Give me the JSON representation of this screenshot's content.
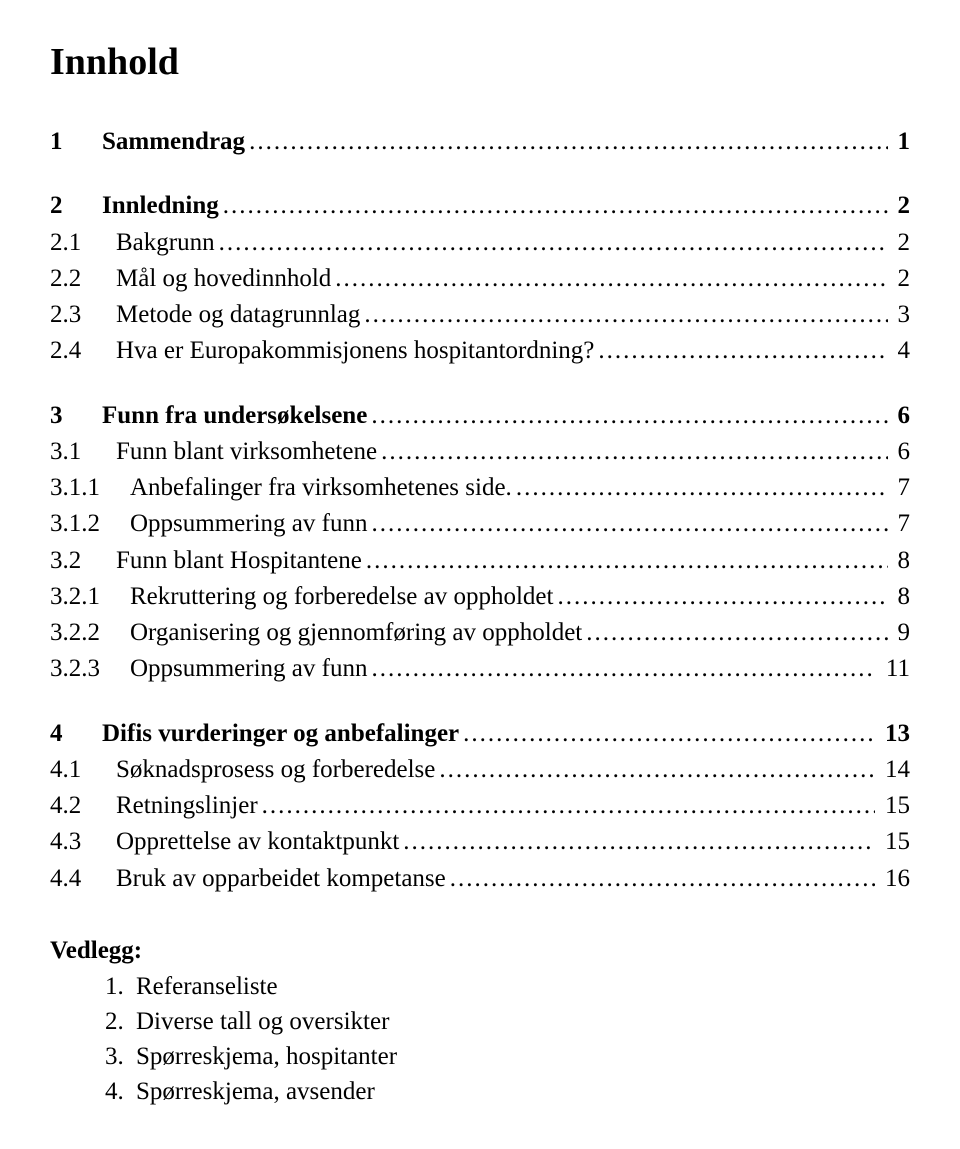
{
  "title": "Innhold",
  "groups": [
    [
      {
        "num": "1",
        "label": "Sammendrag",
        "page": "1",
        "bold": true,
        "level": 0
      }
    ],
    [
      {
        "num": "2",
        "label": "Innledning",
        "page": "2",
        "bold": true,
        "level": 0
      },
      {
        "num": "2.1",
        "label": "Bakgrunn",
        "page": "2",
        "bold": false,
        "level": 1
      },
      {
        "num": "2.2",
        "label": "Mål og hovedinnhold",
        "page": "2",
        "bold": false,
        "level": 1
      },
      {
        "num": "2.3",
        "label": "Metode og datagrunnlag",
        "page": "3",
        "bold": false,
        "level": 1
      },
      {
        "num": "2.4",
        "label": "Hva er Europakommisjonens hospitantordning?",
        "page": "4",
        "bold": false,
        "level": 1
      }
    ],
    [
      {
        "num": "3",
        "label": "Funn fra undersøkelsene",
        "page": "6",
        "bold": true,
        "level": 0
      },
      {
        "num": "3.1",
        "label": "Funn blant virksomhetene",
        "page": "6",
        "bold": false,
        "level": 1
      },
      {
        "num": "3.1.1",
        "label": "Anbefalinger fra virksomhetenes side.",
        "page": "7",
        "bold": false,
        "level": 2
      },
      {
        "num": "3.1.2",
        "label": "Oppsummering av funn",
        "page": "7",
        "bold": false,
        "level": 2
      },
      {
        "num": "3.2",
        "label": "Funn blant Hospitantene",
        "page": "8",
        "bold": false,
        "level": 1
      },
      {
        "num": "3.2.1",
        "label": "Rekruttering og forberedelse av oppholdet",
        "page": "8",
        "bold": false,
        "level": 2
      },
      {
        "num": "3.2.2",
        "label": "Organisering og gjennomføring av oppholdet",
        "page": "9",
        "bold": false,
        "level": 2
      },
      {
        "num": "3.2.3",
        "label": "Oppsummering av funn",
        "page": "11",
        "bold": false,
        "level": 2
      }
    ],
    [
      {
        "num": "4",
        "label": "Difis vurderinger og anbefalinger",
        "page": "13",
        "bold": true,
        "level": 0
      },
      {
        "num": "4.1",
        "label": "Søknadsprosess og forberedelse",
        "page": "14",
        "bold": false,
        "level": 1
      },
      {
        "num": "4.2",
        "label": "Retningslinjer",
        "page": "15",
        "bold": false,
        "level": 1
      },
      {
        "num": "4.3",
        "label": "Opprettelse av kontaktpunkt",
        "page": "15",
        "bold": false,
        "level": 1
      },
      {
        "num": "4.4",
        "label": "Bruk av opparbeidet kompetanse",
        "page": "16",
        "bold": false,
        "level": 1
      }
    ]
  ],
  "appendix": {
    "title": "Vedlegg:",
    "items": [
      "Referanseliste",
      "Diverse tall og oversikter",
      "Spørreskjema, hospitanter",
      "Spørreskjema, avsender"
    ]
  }
}
